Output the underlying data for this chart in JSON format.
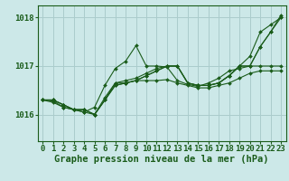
{
  "title": "Graphe pression niveau de la mer (hPa)",
  "background_color": "#cce8e8",
  "grid_color": "#aacccc",
  "line_color": "#1a5c1a",
  "xlim": [
    -0.5,
    23.5
  ],
  "ylim": [
    1015.45,
    1018.25
  ],
  "yticks": [
    1016,
    1017,
    1018
  ],
  "xticks": [
    0,
    1,
    2,
    3,
    4,
    5,
    6,
    7,
    8,
    9,
    10,
    11,
    12,
    13,
    14,
    15,
    16,
    17,
    18,
    19,
    20,
    21,
    22,
    23
  ],
  "series": [
    [
      1016.3,
      1016.3,
      1016.2,
      1016.1,
      1016.1,
      1016.0,
      1016.35,
      1016.65,
      1016.7,
      1016.75,
      1016.85,
      1016.95,
      1017.0,
      1017.0,
      1016.65,
      1016.6,
      1016.6,
      1016.65,
      1016.8,
      1017.0,
      1017.0,
      1017.4,
      1017.7,
      1018.05
    ],
    [
      1016.3,
      1016.28,
      1016.15,
      1016.1,
      1016.05,
      1016.15,
      1016.6,
      1016.95,
      1017.1,
      1017.42,
      1017.0,
      1017.0,
      1016.98,
      1016.7,
      1016.62,
      1016.58,
      1016.65,
      1016.75,
      1016.9,
      1016.95,
      1017.0,
      1017.0,
      1017.0,
      1017.0
    ],
    [
      1016.3,
      1016.25,
      1016.15,
      1016.1,
      1016.05,
      1016.0,
      1016.3,
      1016.65,
      1016.65,
      1016.7,
      1016.7,
      1016.7,
      1016.72,
      1016.65,
      1016.6,
      1016.55,
      1016.55,
      1016.6,
      1016.65,
      1016.75,
      1016.85,
      1016.9,
      1016.9,
      1016.9
    ],
    [
      1016.3,
      1016.3,
      1016.2,
      1016.1,
      1016.1,
      1016.0,
      1016.3,
      1016.6,
      1016.65,
      1016.7,
      1016.8,
      1016.9,
      1017.0,
      1017.0,
      1016.65,
      1016.6,
      1016.6,
      1016.65,
      1016.8,
      1017.0,
      1017.0,
      1017.4,
      1017.7,
      1018.0
    ],
    [
      1016.3,
      1016.3,
      1016.2,
      1016.1,
      1016.1,
      1016.0,
      1016.3,
      1016.6,
      1016.65,
      1016.7,
      1016.8,
      1016.9,
      1017.0,
      1017.0,
      1016.65,
      1016.6,
      1016.6,
      1016.65,
      1016.8,
      1017.0,
      1017.2,
      1017.7,
      1017.85,
      1018.0
    ]
  ],
  "xlabel_fontsize": 7.5,
  "tick_fontsize": 6.5
}
